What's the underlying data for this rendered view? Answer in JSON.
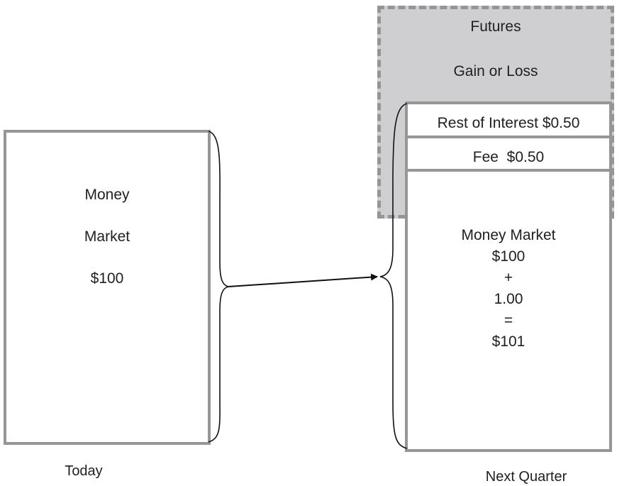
{
  "futures": {
    "title": "Futures",
    "subtitle": "Gain or Loss"
  },
  "today_box": {
    "line1": "Money",
    "line2": "Market",
    "line3": "$100"
  },
  "next_quarter_box": {
    "rest_of_interest": "Rest of Interest $0.50",
    "fee": "Fee  $0.50",
    "mm_title": "Money Market",
    "mm_principal": "$100",
    "mm_plus": "+",
    "mm_interest": "1.00",
    "mm_equals": "=",
    "mm_total": "$101"
  },
  "labels": {
    "today": "Today",
    "next_quarter": "Next Quarter"
  },
  "colors": {
    "box_border": "#969696",
    "futures_fill": "#cfcfd1",
    "futures_border": "#959597",
    "text": "#1f1f1f"
  }
}
